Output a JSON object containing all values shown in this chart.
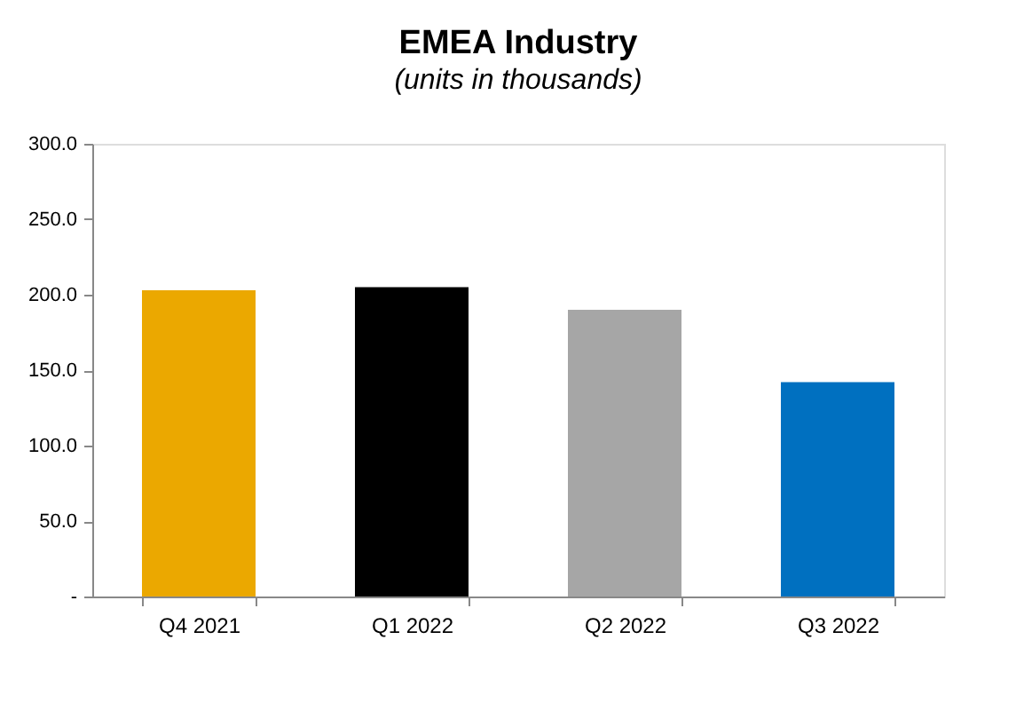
{
  "chart_data": {
    "type": "bar",
    "title": "EMEA Industry",
    "subtitle": "(units in thousands)",
    "categories": [
      "Q4 2021",
      "Q1 2022",
      "Q2 2022",
      "Q3 2022"
    ],
    "values": [
      203,
      205,
      190,
      142
    ],
    "colors": [
      "#eba800",
      "#000000",
      "#a6a6a6",
      "#0070c0"
    ],
    "ylim": [
      0,
      300
    ],
    "yticks": [
      {
        "value": 0,
        "label": "-"
      },
      {
        "value": 50,
        "label": "50.0"
      },
      {
        "value": 100,
        "label": "100.0"
      },
      {
        "value": 150,
        "label": "150.0"
      },
      {
        "value": 200,
        "label": "200.0"
      },
      {
        "value": 250,
        "label": "250.0"
      },
      {
        "value": 300,
        "label": "300.0"
      }
    ],
    "grid": false,
    "legend": false
  }
}
